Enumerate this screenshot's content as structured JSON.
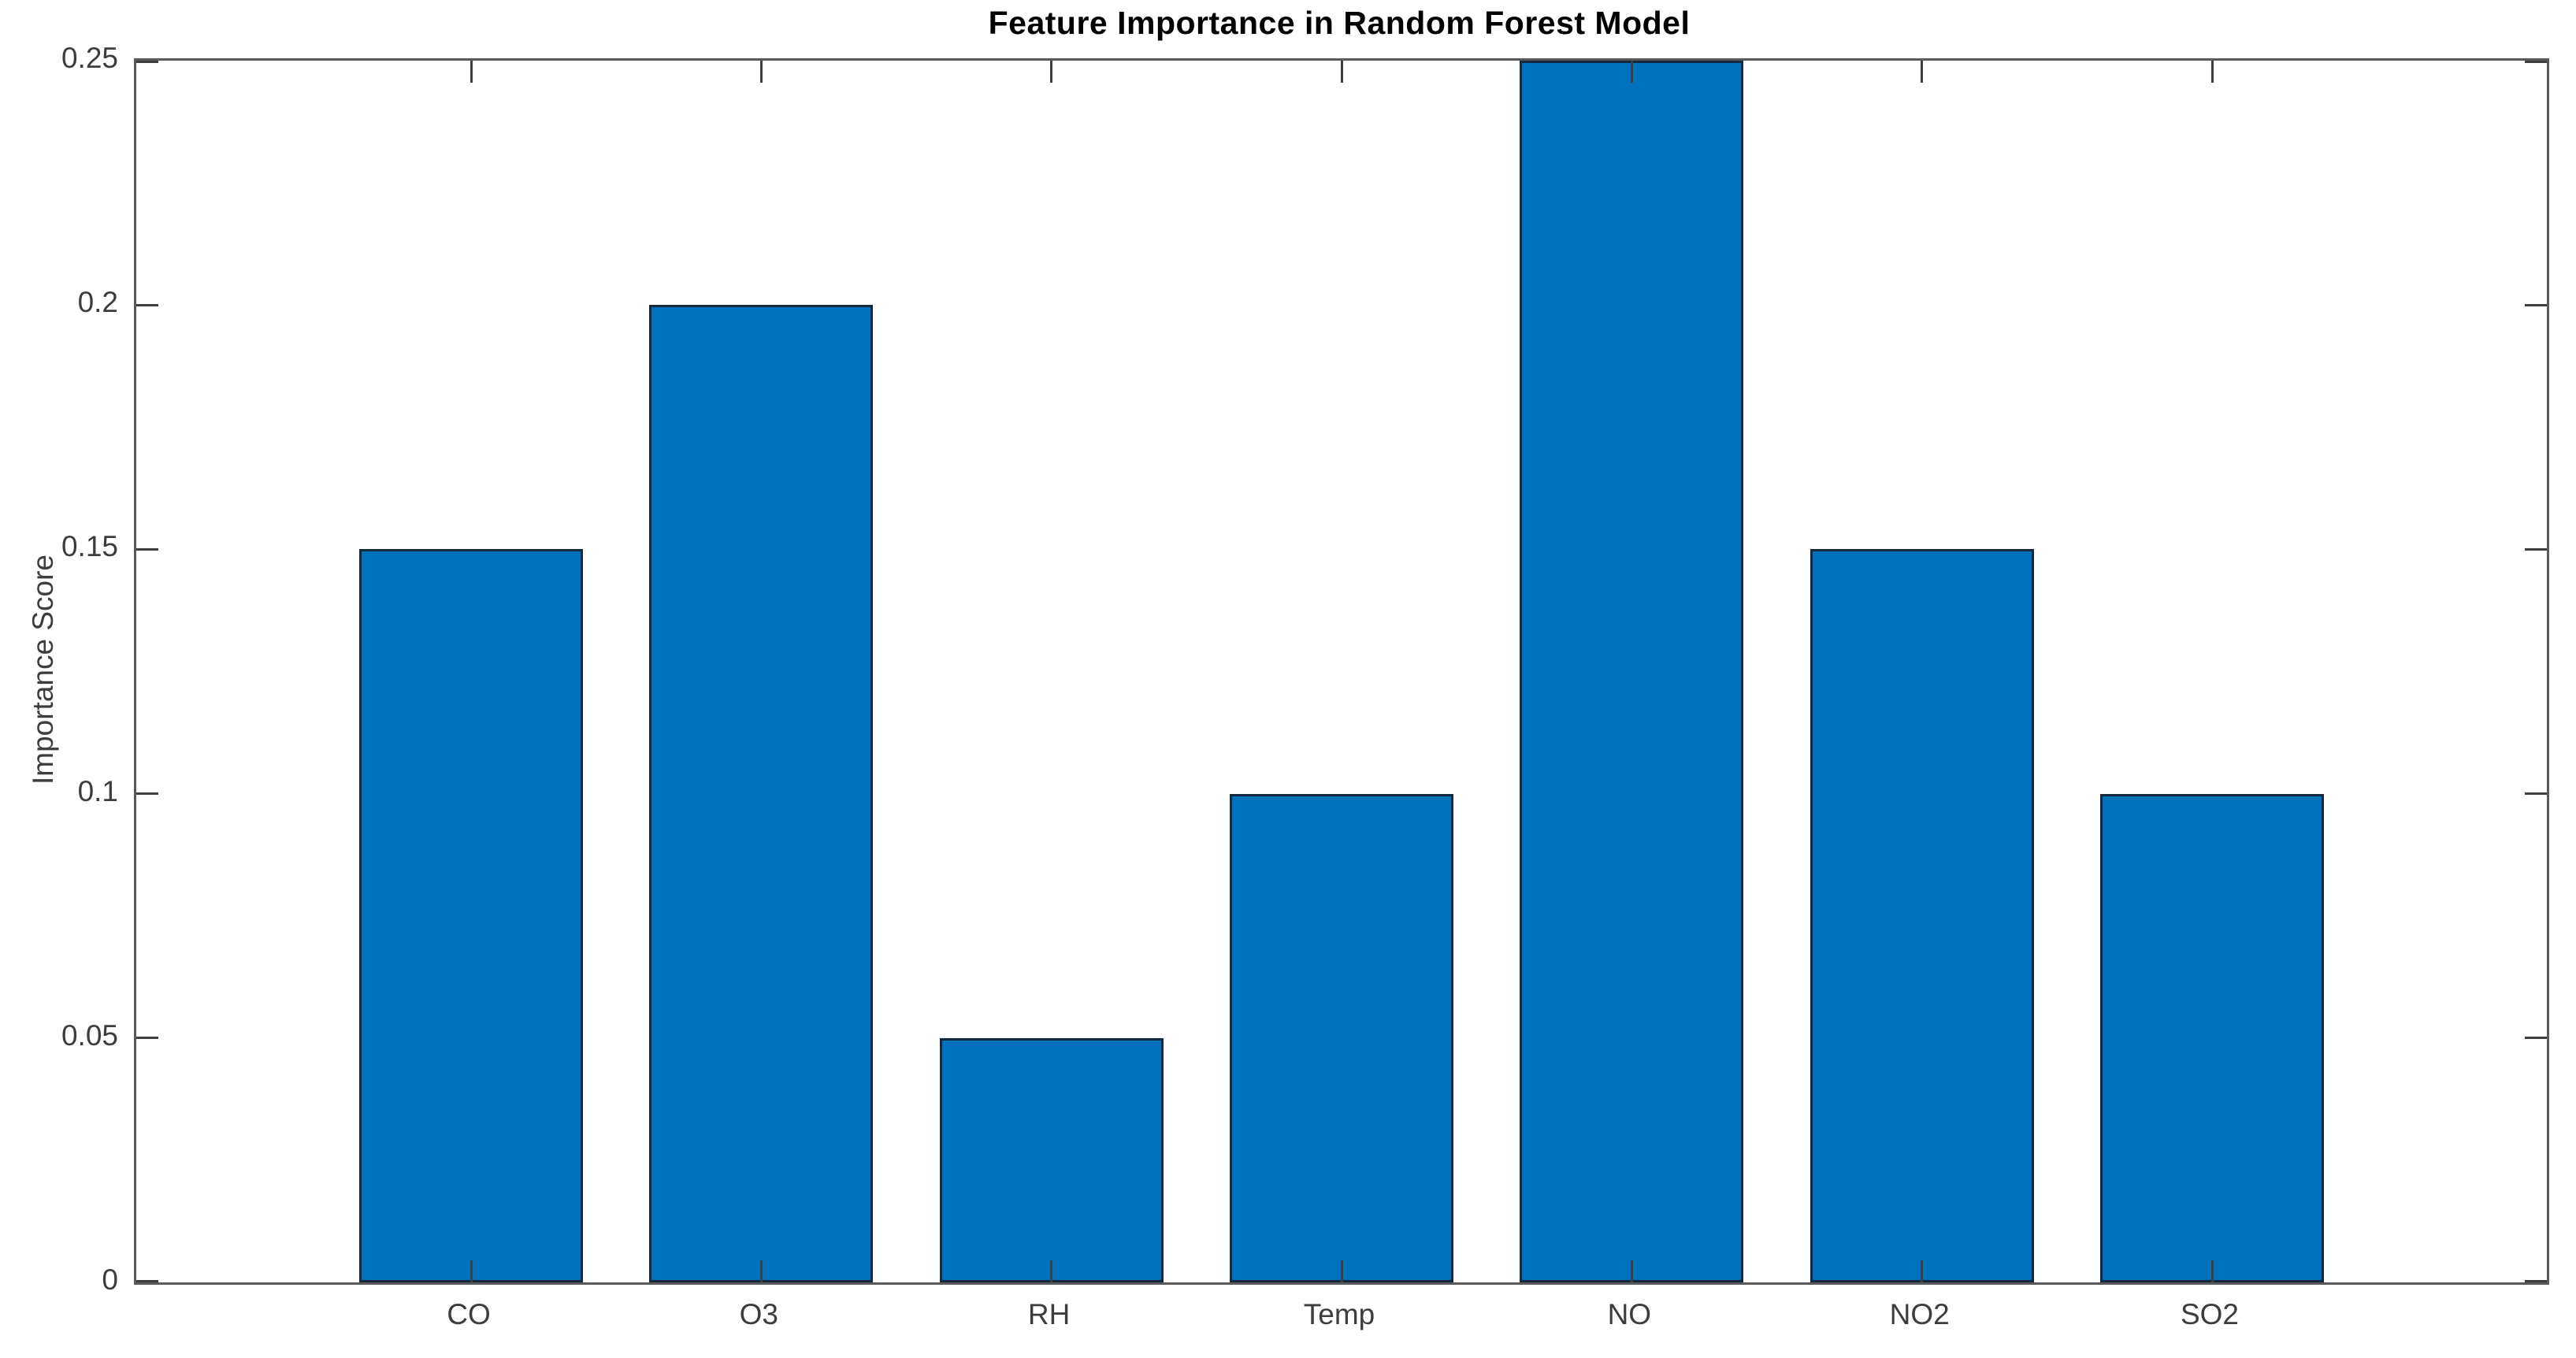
{
  "chart_data": {
    "type": "bar",
    "title": "Feature Importance in Random Forest Model",
    "xlabel": "",
    "ylabel": "Importance Score",
    "categories": [
      "CO",
      "O3",
      "RH",
      "Temp",
      "NO",
      "NO2",
      "SO2"
    ],
    "values": [
      0.15,
      0.2,
      0.05,
      0.1,
      0.25,
      0.15,
      0.1
    ],
    "ylim": [
      0,
      0.25
    ],
    "yticks": [
      0,
      0.05,
      0.1,
      0.15,
      0.2,
      0.25
    ],
    "ytick_labels": [
      "0",
      "0.05",
      "0.1",
      "0.15",
      "0.2",
      "0.25"
    ],
    "grid": false,
    "legend": "none",
    "box": true,
    "tick_direction": "in",
    "colors": {
      "bar_fill": "#0072bd",
      "bar_edge": "#14293e",
      "axis_line": "#595959",
      "tick_mark": "#3f3f3f",
      "tick_label": "#3d3d3d",
      "title_text": "#000000",
      "background": "#ffffff"
    }
  }
}
